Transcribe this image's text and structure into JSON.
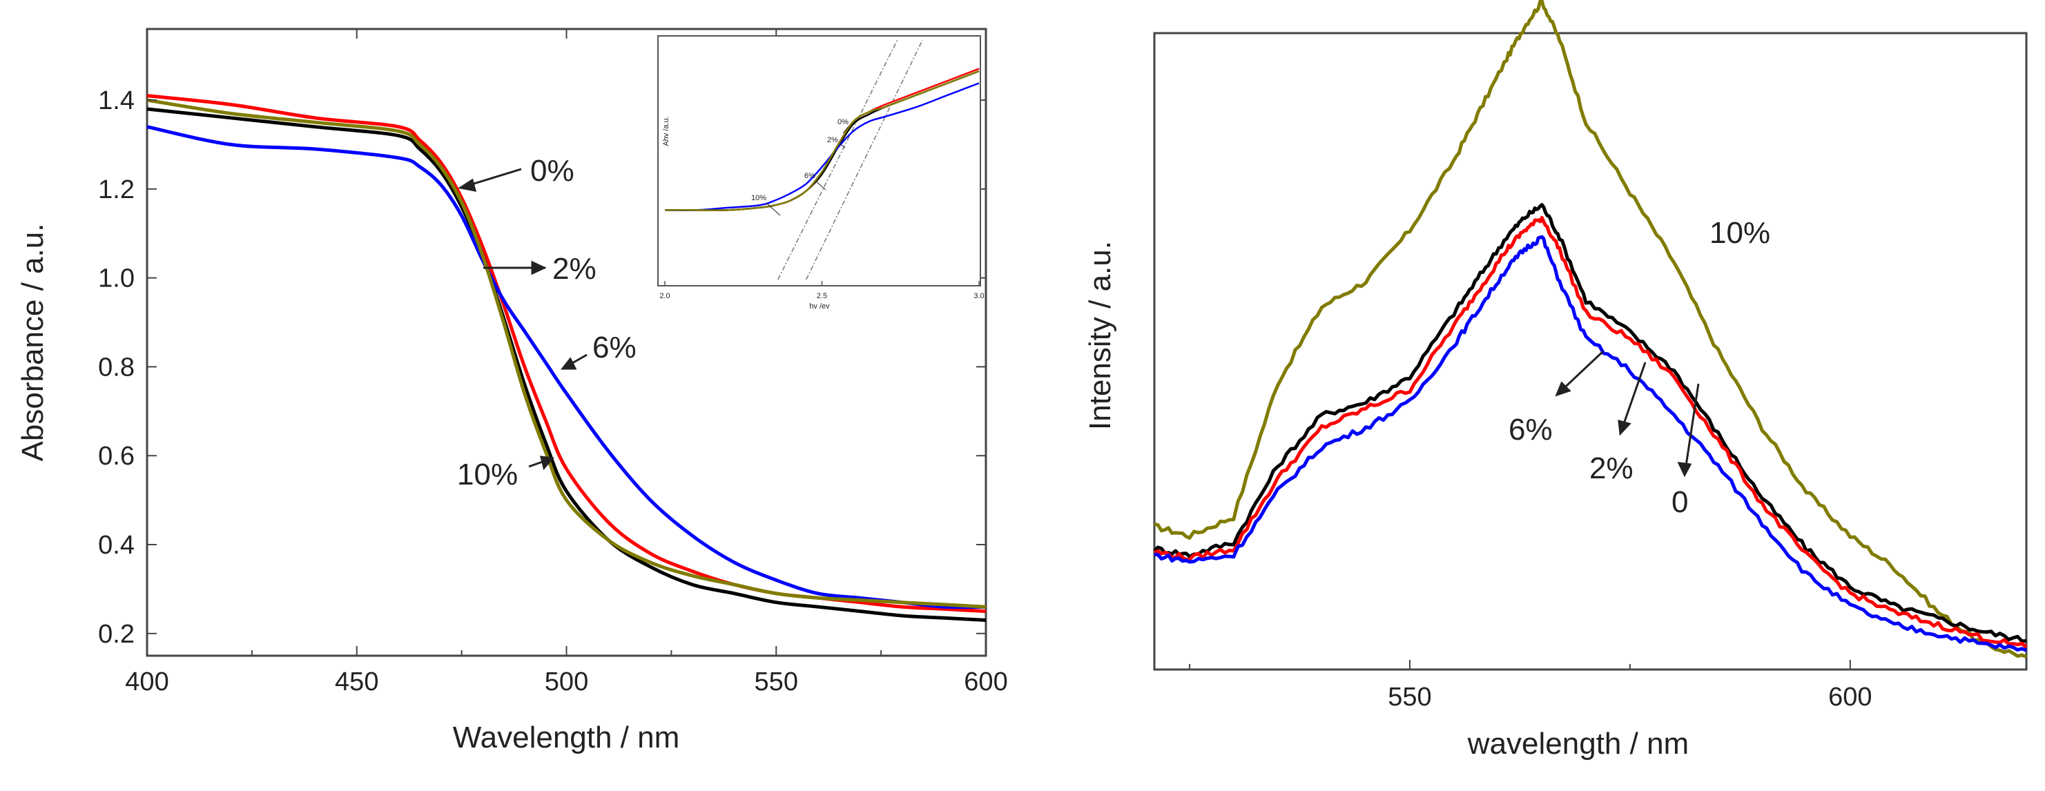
{
  "chart_data": [
    {
      "type": "line",
      "xlabel": "Wavelength / nm",
      "ylabel": "Absorbance / a.u.",
      "xlim": [
        400,
        600
      ],
      "ylim": [
        0.15,
        1.56
      ],
      "xticks": [
        400,
        450,
        500,
        550,
        600
      ],
      "xtick_labels": [
        "400",
        "450",
        "500",
        "550",
        "600"
      ],
      "yticks": [
        0.2,
        0.4,
        0.6,
        0.8,
        1.0,
        1.2,
        1.4
      ],
      "ytick_labels": [
        "0.2",
        "0.4",
        "0.6",
        "0.8",
        "1.0",
        "1.2",
        "1.4"
      ],
      "grid": false,
      "series": [
        {
          "name": "0%",
          "color": "#ff0000",
          "x": [
            400,
            420,
            440,
            460,
            465,
            470,
            475,
            480,
            485,
            490,
            495,
            500,
            510,
            520,
            530,
            540,
            550,
            560,
            570,
            580,
            590,
            600
          ],
          "y": [
            1.41,
            1.39,
            1.36,
            1.34,
            1.31,
            1.26,
            1.18,
            1.07,
            0.94,
            0.8,
            0.68,
            0.57,
            0.45,
            0.38,
            0.34,
            0.31,
            0.29,
            0.28,
            0.27,
            0.26,
            0.255,
            0.25
          ]
        },
        {
          "name": "2%",
          "color": "#000000",
          "x": [
            400,
            420,
            440,
            460,
            465,
            470,
            475,
            480,
            485,
            490,
            495,
            500,
            510,
            520,
            530,
            540,
            550,
            560,
            570,
            580,
            590,
            600
          ],
          "y": [
            1.38,
            1.36,
            1.34,
            1.32,
            1.29,
            1.24,
            1.16,
            1.05,
            0.91,
            0.76,
            0.63,
            0.52,
            0.41,
            0.35,
            0.31,
            0.29,
            0.27,
            0.26,
            0.25,
            0.24,
            0.235,
            0.23
          ]
        },
        {
          "name": "6%",
          "color": "#0000ff",
          "x": [
            400,
            420,
            440,
            460,
            465,
            470,
            475,
            480,
            485,
            490,
            495,
            500,
            510,
            520,
            530,
            540,
            550,
            560,
            570,
            580,
            590,
            600
          ],
          "y": [
            1.34,
            1.3,
            1.29,
            1.27,
            1.25,
            1.21,
            1.14,
            1.04,
            0.95,
            0.88,
            0.81,
            0.74,
            0.61,
            0.5,
            0.42,
            0.36,
            0.32,
            0.29,
            0.28,
            0.27,
            0.26,
            0.26
          ]
        },
        {
          "name": "10%",
          "color": "#807c00",
          "x": [
            400,
            420,
            440,
            460,
            465,
            470,
            475,
            480,
            485,
            490,
            495,
            500,
            510,
            520,
            530,
            540,
            550,
            560,
            570,
            580,
            590,
            600
          ],
          "y": [
            1.4,
            1.37,
            1.35,
            1.33,
            1.3,
            1.25,
            1.17,
            1.05,
            0.9,
            0.74,
            0.61,
            0.5,
            0.41,
            0.36,
            0.33,
            0.31,
            0.29,
            0.28,
            0.275,
            0.27,
            0.265,
            0.26
          ]
        }
      ],
      "annotations": [
        {
          "text": "0%",
          "series": "0%"
        },
        {
          "text": "2%",
          "series": "2%"
        },
        {
          "text": "6%",
          "series": "6%"
        },
        {
          "text": "10%",
          "series": "10%"
        }
      ],
      "inset": {
        "xlabel": "hv /ev",
        "ylabel": "Ahv /a.u.",
        "xlim": [
          2.0,
          3.0
        ],
        "ylim": [
          0,
          1
        ],
        "xtick_labels": [
          "2.0",
          "2.5",
          "3.0"
        ],
        "labels": [
          "0%",
          "2%",
          "6%",
          "10%"
        ],
        "series": [
          {
            "name": "0%",
            "color": "#ff0000",
            "x": [
              2.0,
              2.1,
              2.2,
              2.3,
              2.35,
              2.4,
              2.45,
              2.5,
              2.55,
              2.6,
              2.65,
              2.7,
              2.8,
              2.9,
              3.0
            ],
            "y": [
              0.29,
              0.29,
              0.29,
              0.3,
              0.31,
              0.33,
              0.37,
              0.44,
              0.56,
              0.66,
              0.7,
              0.73,
              0.78,
              0.83,
              0.88
            ]
          },
          {
            "name": "2%",
            "color": "#000000",
            "x": [
              2.0,
              2.1,
              2.2,
              2.3,
              2.35,
              2.4,
              2.45,
              2.5,
              2.55,
              2.6,
              2.65,
              2.7,
              2.8,
              2.9,
              3.0
            ],
            "y": [
              0.29,
              0.29,
              0.29,
              0.3,
              0.31,
              0.33,
              0.37,
              0.44,
              0.55,
              0.65,
              0.69,
              0.72,
              0.77,
              0.82,
              0.87
            ]
          },
          {
            "name": "6%",
            "color": "#0000ff",
            "x": [
              2.0,
              2.1,
              2.2,
              2.3,
              2.35,
              2.4,
              2.45,
              2.5,
              2.55,
              2.6,
              2.65,
              2.7,
              2.8,
              2.9,
              3.0
            ],
            "y": [
              0.29,
              0.29,
              0.3,
              0.31,
              0.33,
              0.36,
              0.4,
              0.47,
              0.55,
              0.62,
              0.66,
              0.68,
              0.72,
              0.77,
              0.82
            ]
          },
          {
            "name": "10%",
            "color": "#807c00",
            "x": [
              2.0,
              2.1,
              2.2,
              2.3,
              2.35,
              2.4,
              2.45,
              2.5,
              2.55,
              2.6,
              2.65,
              2.7,
              2.8,
              2.9,
              3.0
            ],
            "y": [
              0.29,
              0.29,
              0.29,
              0.3,
              0.31,
              0.33,
              0.37,
              0.45,
              0.56,
              0.66,
              0.7,
              0.72,
              0.77,
              0.82,
              0.87
            ]
          }
        ],
        "tangents": [
          {
            "x": [
              2.36,
              2.74
            ],
            "y": [
              0.0,
              1.0
            ]
          },
          {
            "x": [
              2.45,
              2.82
            ],
            "y": [
              0.0,
              1.0
            ]
          }
        ]
      }
    },
    {
      "type": "line",
      "xlabel": "wavelength / nm",
      "ylabel": "Intensity / a.u.",
      "xlim": [
        521,
        620
      ],
      "ylim": [
        0,
        1
      ],
      "xticks": [
        550,
        600
      ],
      "xtick_labels": [
        "550",
        "600"
      ],
      "yticks": [],
      "grid": false,
      "series": [
        {
          "name": "10%",
          "color": "#807c00",
          "x": [
            521,
            525,
            530,
            535,
            540,
            545,
            550,
            555,
            558,
            561,
            563,
            565,
            567,
            570,
            575,
            580,
            585,
            590,
            595,
            600,
            605,
            610,
            615,
            620
          ],
          "y": [
            0.225,
            0.21,
            0.24,
            0.45,
            0.57,
            0.61,
            0.69,
            0.8,
            0.88,
            0.96,
            1.01,
            1.05,
            0.99,
            0.86,
            0.75,
            0.64,
            0.5,
            0.38,
            0.28,
            0.21,
            0.16,
            0.09,
            0.04,
            0.02
          ]
        },
        {
          "name": "2%",
          "color": "#000000",
          "x": [
            521,
            525,
            530,
            535,
            540,
            545,
            550,
            555,
            558,
            561,
            563,
            565,
            567,
            570,
            575,
            580,
            585,
            590,
            595,
            600,
            605,
            610,
            615,
            620
          ],
          "y": [
            0.19,
            0.18,
            0.2,
            0.32,
            0.4,
            0.42,
            0.46,
            0.56,
            0.62,
            0.68,
            0.71,
            0.73,
            0.68,
            0.58,
            0.53,
            0.47,
            0.37,
            0.27,
            0.19,
            0.13,
            0.1,
            0.08,
            0.06,
            0.045
          ]
        },
        {
          "name": "0",
          "color": "#ff0000",
          "x": [
            521,
            525,
            530,
            535,
            540,
            545,
            550,
            555,
            558,
            561,
            563,
            565,
            567,
            570,
            575,
            580,
            585,
            590,
            595,
            600,
            605,
            610,
            615,
            620
          ],
          "y": [
            0.185,
            0.175,
            0.19,
            0.3,
            0.38,
            0.41,
            0.44,
            0.54,
            0.6,
            0.66,
            0.69,
            0.71,
            0.66,
            0.56,
            0.52,
            0.46,
            0.36,
            0.26,
            0.18,
            0.12,
            0.09,
            0.07,
            0.05,
            0.035
          ]
        },
        {
          "name": "6%",
          "color": "#0000ff",
          "x": [
            521,
            525,
            530,
            535,
            540,
            545,
            550,
            555,
            558,
            561,
            563,
            565,
            567,
            570,
            575,
            580,
            585,
            590,
            595,
            600,
            605,
            610,
            615,
            620
          ],
          "y": [
            0.18,
            0.17,
            0.18,
            0.28,
            0.35,
            0.38,
            0.42,
            0.51,
            0.57,
            0.63,
            0.66,
            0.68,
            0.61,
            0.52,
            0.47,
            0.4,
            0.32,
            0.23,
            0.15,
            0.1,
            0.07,
            0.055,
            0.04,
            0.03
          ]
        }
      ],
      "annotations": [
        {
          "text": "10%",
          "series": "10%"
        },
        {
          "text": "6%",
          "series": "6%"
        },
        {
          "text": "2%",
          "series": "2%"
        },
        {
          "text": "0",
          "series": "0"
        }
      ]
    }
  ]
}
